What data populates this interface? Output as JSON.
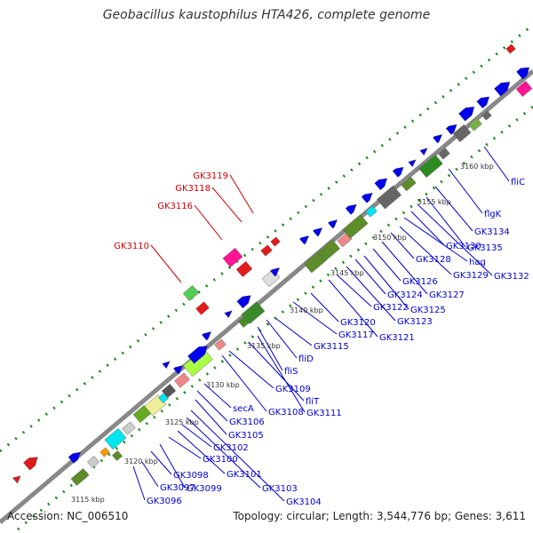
{
  "title": "Geobacillus kaustophilus HTA426, complete genome",
  "footer": {
    "accession": "Accession: NC_006510",
    "topology": "Topology: circular; Length: 3,544,776 bp; Genes: 3,611"
  },
  "ticks": [
    "3115 kbp",
    "3120 kbp",
    "3125 kbp",
    "3130 kbp",
    "3135 kbp",
    "3140 kbp",
    "3145 kbp",
    "3150 kbp",
    "3155 kbp",
    "3160 kbp"
  ],
  "labels": {
    "top_strand": [
      "GK3110",
      "GK3116",
      "GK3118",
      "GK3119"
    ],
    "bottom_strand": [
      "GK3096",
      "GK3097",
      "GK3098",
      "GK3099",
      "GK3100",
      "GK3101",
      "GK3102",
      "GK3103",
      "GK3104",
      "GK3105",
      "GK3106",
      "secA",
      "GK3108",
      "GK3109",
      "fliT",
      "GK3111",
      "fliS",
      "fliD",
      "GK3115",
      "GK3117",
      "GK3120",
      "GK3121",
      "GK3122",
      "GK3123",
      "GK3124",
      "GK3125",
      "GK3126",
      "GK3127",
      "GK3128",
      "GK3129",
      "hag",
      "GK3130",
      "GK3132",
      "GK3135",
      "GK3134",
      "flgK",
      "fliC"
    ]
  },
  "colors": {
    "cds": "#0000ee",
    "rna": "#ee0000",
    "green": "#558b2f",
    "backbone": "#888888"
  }
}
